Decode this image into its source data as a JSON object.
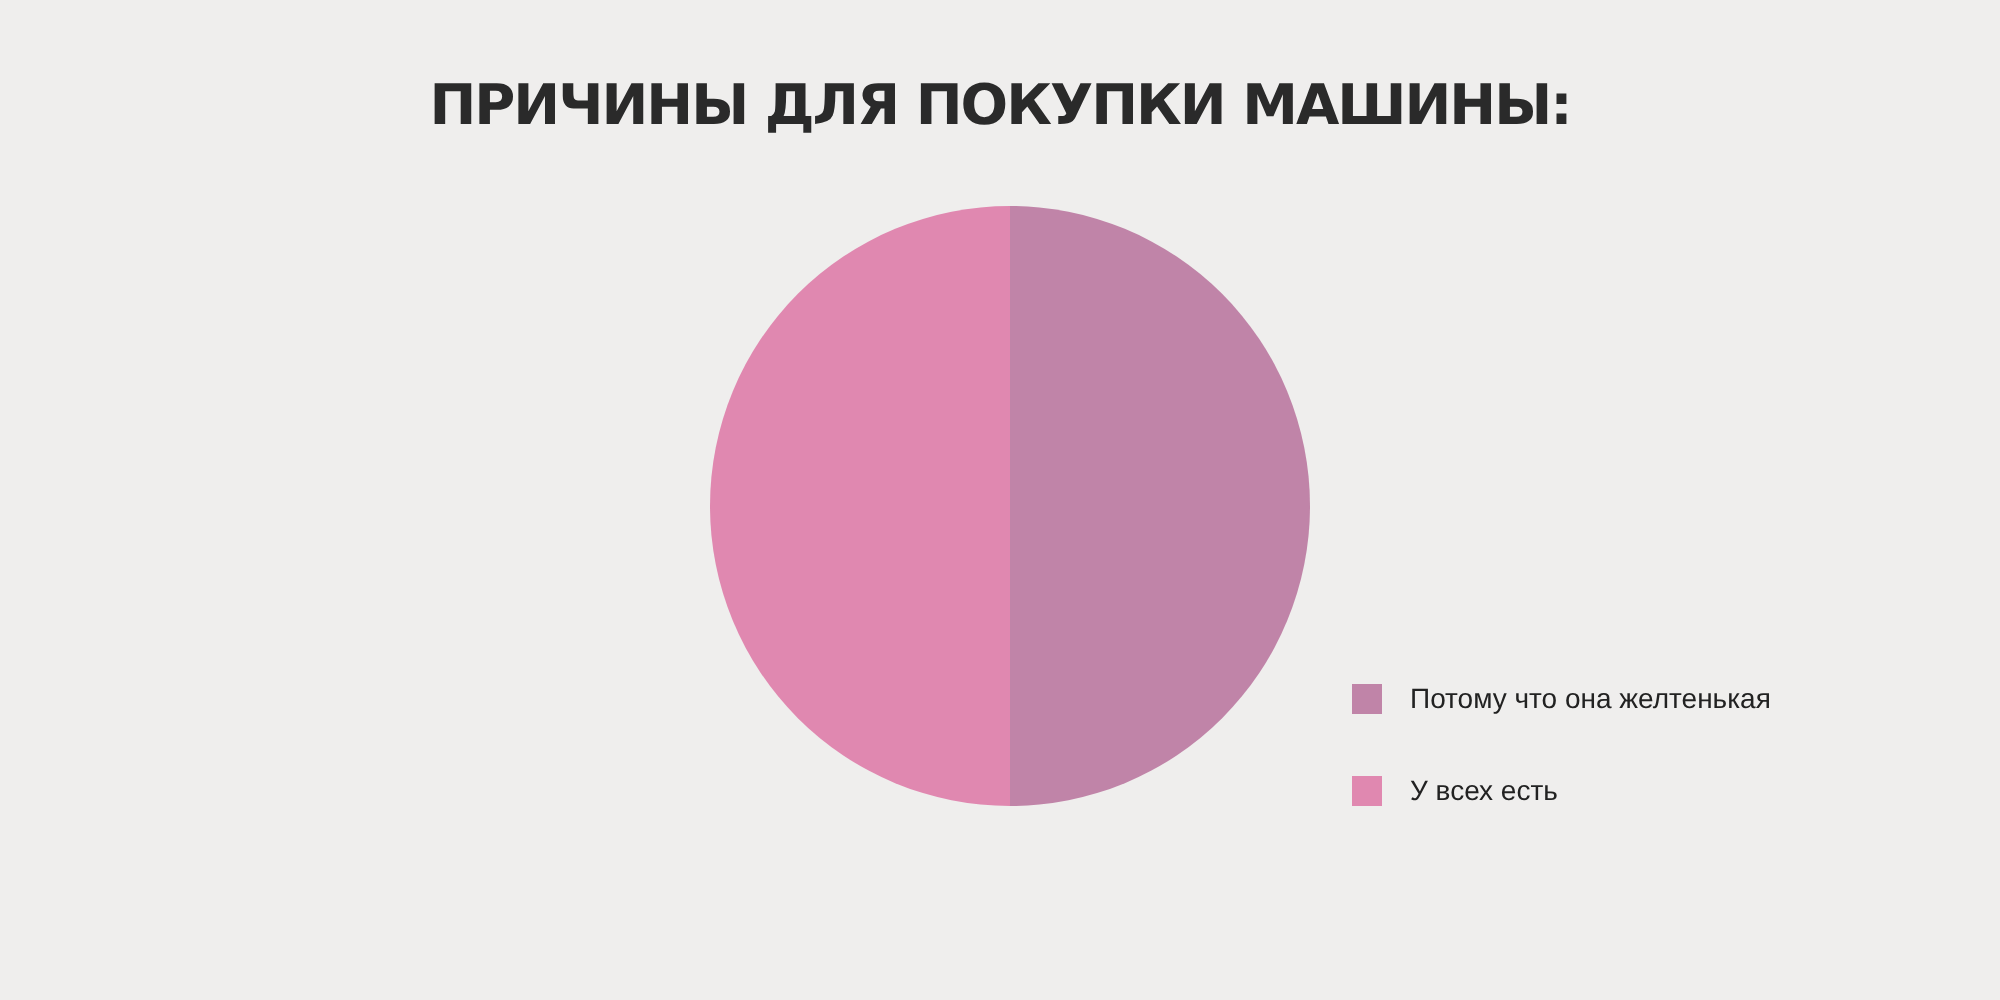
{
  "chart_data": {
    "type": "pie",
    "title": "ПРИЧИНЫ ДЛЯ ПОКУПКИ МАШИНЫ:",
    "categories": [
      "Потому что она желтенькая",
      "У всех есть"
    ],
    "values": [
      50,
      50
    ],
    "colors": [
      "#c084a8",
      "#e088b0"
    ],
    "legend": "bottom right"
  }
}
